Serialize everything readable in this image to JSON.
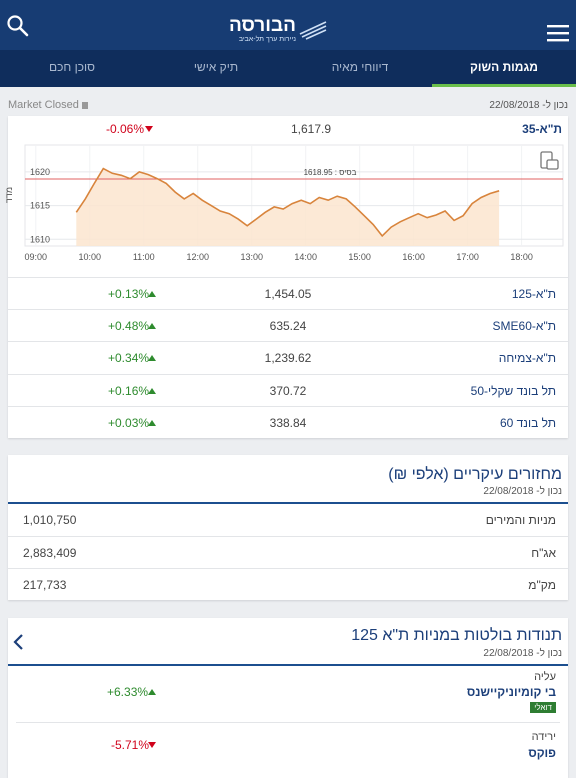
{
  "header": {
    "logo_title": "הבורסה",
    "logo_subtitle": "ניירות ערך תל-אביב"
  },
  "tabs": [
    "מגמות השוק",
    "דיווחי מאיה",
    "תיק אישי",
    "סוכן חכם"
  ],
  "status": {
    "market_state": "Market Closed",
    "as_of": "נכון ל- 22/08/2018"
  },
  "main_index": {
    "name": "ת\"א-35",
    "value": "1,617.9",
    "change": "-0.06%",
    "color": "#d0021b"
  },
  "chart": {
    "type": "line",
    "y_label": "מדד",
    "base": {
      "value": 1618.95,
      "label": "בסיס : 1618.95"
    },
    "color": "#d8843c",
    "xlim": [
      "08:48",
      "18:46"
    ],
    "xticks": [
      "09:00",
      "10:00",
      "11:00",
      "12:00",
      "13:00",
      "14:00",
      "15:00",
      "16:00",
      "17:00",
      "18:00"
    ],
    "ylim": [
      1609,
      1624
    ],
    "yticks": [
      1610,
      1615,
      1620
    ],
    "x": [
      "09:45",
      "09:55",
      "10:05",
      "10:15",
      "10:25",
      "10:35",
      "10:45",
      "10:55",
      "11:05",
      "11:15",
      "11:25",
      "11:35",
      "11:45",
      "11:55",
      "12:05",
      "12:15",
      "12:25",
      "12:35",
      "12:45",
      "12:55",
      "13:05",
      "13:15",
      "13:25",
      "13:35",
      "13:45",
      "13:55",
      "14:05",
      "14:15",
      "14:25",
      "14:35",
      "14:45",
      "14:55",
      "15:05",
      "15:15",
      "15:25",
      "15:35",
      "15:45",
      "15:55",
      "16:05",
      "16:15",
      "16:25",
      "16:35",
      "16:45",
      "16:55",
      "17:05",
      "17:15",
      "17:25",
      "17:35"
    ],
    "values": [
      1614.0,
      1616.0,
      1618.3,
      1620.5,
      1619.8,
      1619.5,
      1619.0,
      1620.0,
      1619.6,
      1619.0,
      1618.3,
      1617.0,
      1616.0,
      1616.8,
      1615.8,
      1615.0,
      1614.2,
      1613.8,
      1613.0,
      1612.0,
      1613.0,
      1614.0,
      1614.8,
      1614.5,
      1615.3,
      1615.8,
      1615.3,
      1616.2,
      1615.8,
      1616.4,
      1616.0,
      1614.8,
      1613.5,
      1612.2,
      1610.5,
      1611.8,
      1612.6,
      1613.2,
      1613.8,
      1613.2,
      1613.6,
      1614.2,
      1612.8,
      1613.5,
      1615.3,
      1616.2,
      1616.8,
      1617.2
    ]
  },
  "indices": [
    {
      "name": "ת\"א-125",
      "value": "1,454.05",
      "change": "+0.13%",
      "color": "#2e8b2e"
    },
    {
      "name": "ת\"א-SME60",
      "value": "635.24",
      "change": "+0.48%",
      "color": "#2e8b2e"
    },
    {
      "name": "ת\"א-צמיחה",
      "value": "1,239.62",
      "change": "+0.34%",
      "color": "#2e8b2e"
    },
    {
      "name": "תל בונד שקלי-50",
      "value": "370.72",
      "change": "+0.16%",
      "color": "#2e8b2e"
    },
    {
      "name": "תל בונד 60",
      "value": "338.84",
      "change": "+0.03%",
      "color": "#2e8b2e"
    }
  ],
  "turnover": {
    "title": "מחזורים עיקריים (אלפי ₪)",
    "as_of": "נכון ל- 22/08/2018",
    "rows": [
      {
        "name": "מניות והמירים",
        "value": "1,010,750"
      },
      {
        "name": "אג\"ח",
        "value": "2,883,409"
      },
      {
        "name": "מק\"מ",
        "value": "217,733"
      }
    ]
  },
  "movers": {
    "title": "תנודות בולטות במניות ת\"א 125",
    "as_of": "נכון ל- 22/08/2018",
    "up": {
      "label": "עליה",
      "name": "בי קומיוניקיישנס",
      "badge": "דואלי",
      "change": "+6.33%",
      "color": "#2e8b2e"
    },
    "down": {
      "label": "ירידה",
      "name": "פוקס",
      "change": "-5.71%",
      "color": "#d0021b"
    }
  }
}
